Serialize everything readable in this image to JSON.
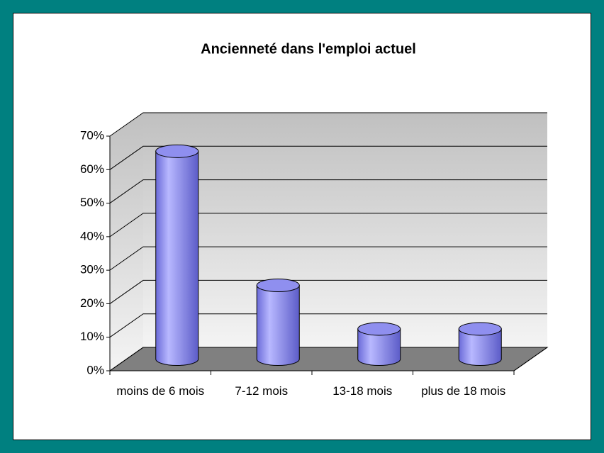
{
  "chart_data": {
    "type": "bar3d",
    "title": "Ancienneté dans l'emploi actuel",
    "categories": [
      "moins de 6 mois",
      "7-12 mois",
      "13-18 mois",
      "plus de 18 mois"
    ],
    "values": [
      62,
      22,
      9,
      9
    ],
    "color": "#8f8fef",
    "ylim": [
      0,
      70
    ],
    "yticks": [
      {
        "value": 0,
        "label": "0%"
      },
      {
        "value": 10,
        "label": "10%"
      },
      {
        "value": 20,
        "label": "20%"
      },
      {
        "value": 30,
        "label": "30%"
      },
      {
        "value": 40,
        "label": "40%"
      },
      {
        "value": 50,
        "label": "50%"
      },
      {
        "value": 60,
        "label": "60%"
      },
      {
        "value": 70,
        "label": "70%"
      }
    ],
    "grid": true
  }
}
